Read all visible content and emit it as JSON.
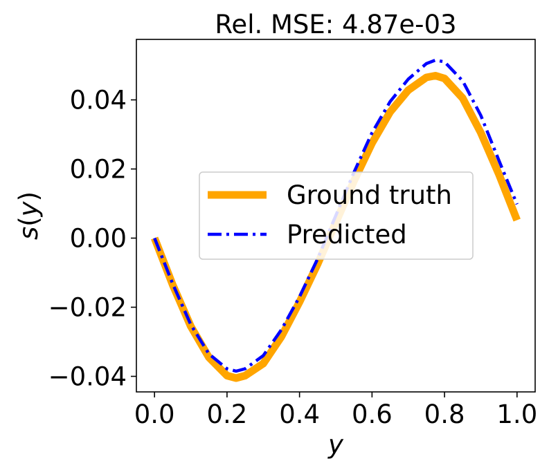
{
  "chart_data": {
    "type": "line",
    "title": "Rel. MSE: 4.87e-03",
    "xlabel": "y",
    "ylabel_func": "s",
    "ylabel_var": "y",
    "xlim": [
      -0.05,
      1.05
    ],
    "ylim": [
      -0.0445,
      0.0575
    ],
    "xticks": [
      0.0,
      0.2,
      0.4,
      0.6,
      0.8,
      1.0
    ],
    "xtick_labels": [
      "0.0",
      "0.2",
      "0.4",
      "0.6",
      "0.8",
      "1.0"
    ],
    "yticks": [
      -0.04,
      -0.02,
      0.0,
      0.02,
      0.04
    ],
    "ytick_labels": [
      "−0.04",
      "−0.02",
      "0.00",
      "0.02",
      "0.04"
    ],
    "grid": false,
    "legend_position": "center-right",
    "series": [
      {
        "name": "Ground truth",
        "color": "#FFA500",
        "style": "solid",
        "x": [
          0.0,
          0.05,
          0.1,
          0.15,
          0.2,
          0.225,
          0.25,
          0.3,
          0.35,
          0.4,
          0.45,
          0.5,
          0.55,
          0.6,
          0.65,
          0.7,
          0.75,
          0.775,
          0.8,
          0.85,
          0.9,
          0.95,
          1.0
        ],
        "y": [
          0.0,
          -0.0135,
          -0.0255,
          -0.0345,
          -0.0398,
          -0.0405,
          -0.0398,
          -0.0363,
          -0.0285,
          -0.0185,
          -0.0075,
          0.0045,
          0.0165,
          0.0275,
          0.0365,
          0.0428,
          0.0465,
          0.047,
          0.0462,
          0.0405,
          0.0305,
          0.0185,
          0.0052
        ]
      },
      {
        "name": "Predicted",
        "color": "#0000FF",
        "style": "dashdot",
        "x": [
          0.0,
          0.05,
          0.1,
          0.15,
          0.2,
          0.225,
          0.25,
          0.3,
          0.35,
          0.4,
          0.45,
          0.5,
          0.55,
          0.6,
          0.65,
          0.7,
          0.75,
          0.775,
          0.8,
          0.85,
          0.9,
          0.95,
          1.0
        ],
        "y": [
          0.0,
          -0.0132,
          -0.025,
          -0.0335,
          -0.0378,
          -0.0385,
          -0.0378,
          -0.034,
          -0.0265,
          -0.017,
          -0.006,
          0.0065,
          0.019,
          0.0305,
          0.0395,
          0.046,
          0.0505,
          0.0515,
          0.051,
          0.0455,
          0.0355,
          0.0225,
          0.0098
        ]
      }
    ]
  }
}
